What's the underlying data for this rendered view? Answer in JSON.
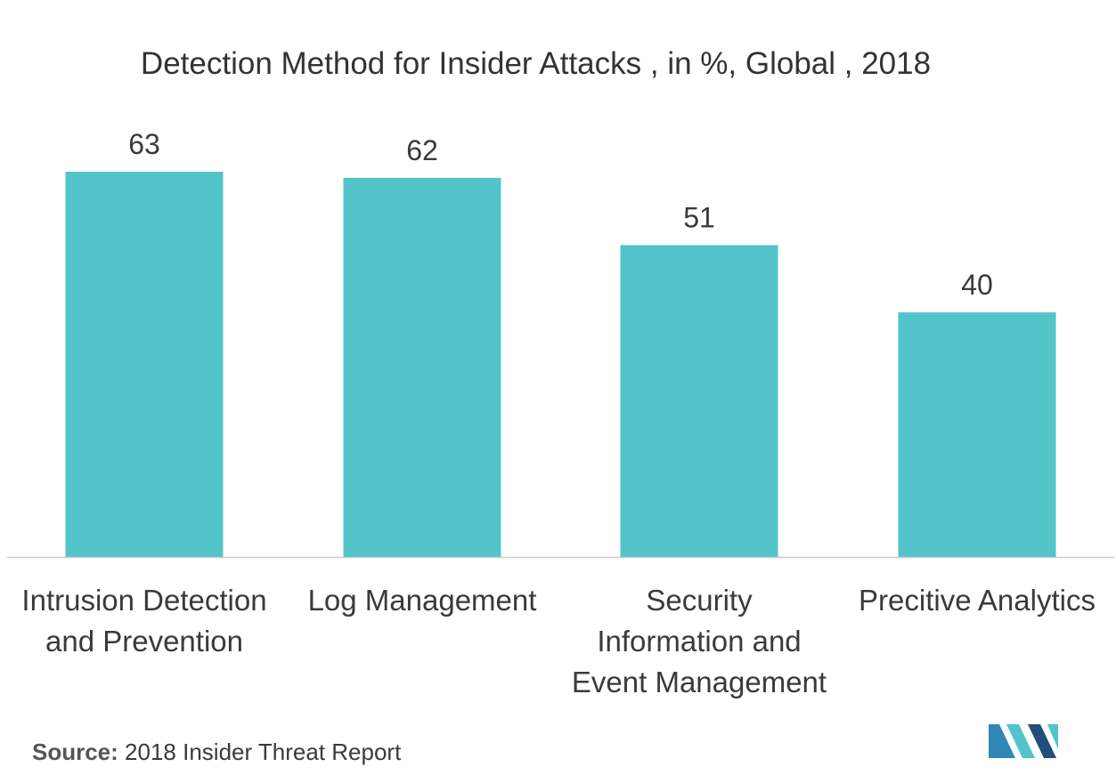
{
  "chart_data": {
    "type": "bar",
    "title": "Detection Method for Insider Attacks , in %, Global , 2018",
    "categories": [
      "Intrusion Detection and Prevention",
      "Log Management",
      "Security Information and Event Management",
      "Precitive Analytics"
    ],
    "category_lines": [
      [
        "Intrusion Detection",
        "and Prevention"
      ],
      [
        "Log Management"
      ],
      [
        "Security",
        "Information and",
        "Event Management"
      ],
      [
        "Precitive Analytics"
      ]
    ],
    "values": [
      63,
      62,
      51,
      40
    ],
    "ylim": [
      0,
      63
    ],
    "grid": false,
    "legend": "none",
    "colors": {
      "bar": "#52c4ca",
      "axis": "#cccccc",
      "label": "#3a3a3a"
    }
  },
  "source": {
    "label": "Source:",
    "text": "2018 Insider Threat Report"
  },
  "logo": {
    "icon": "mordor-logo-icon",
    "colors": [
      "#1f4f7a",
      "#2f87b8",
      "#52c4ca"
    ]
  }
}
